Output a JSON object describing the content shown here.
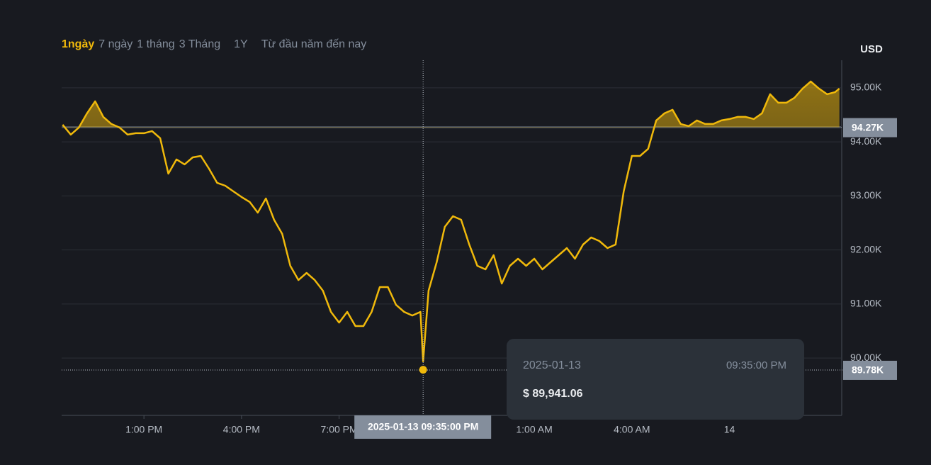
{
  "tabs": [
    "1ngày",
    "7 ngày",
    "1 tháng",
    "3 Tháng",
    "1Y",
    "Từ đầu năm đến nay"
  ],
  "chart_data": {
    "type": "line",
    "y_axis_label": "USD",
    "x": [
      -1.5,
      -1.25,
      -1,
      -0.75,
      -0.5,
      -0.25,
      0,
      0.25,
      0.5,
      0.75,
      1,
      1.25,
      1.5,
      1.75,
      2,
      2.25,
      2.5,
      2.75,
      3,
      3.25,
      3.5,
      3.75,
      4,
      4.25,
      4.5,
      4.75,
      5,
      5.25,
      5.5,
      5.75,
      6,
      6.25,
      6.5,
      6.75,
      7,
      7.25,
      7.5,
      7.75,
      8,
      8.25,
      8.5,
      8.75,
      9,
      9.25,
      9.5,
      9.583,
      9.75,
      10,
      10.25,
      10.5,
      10.75,
      11,
      11.25,
      11.5,
      11.75,
      12,
      12.25,
      12.5,
      12.75,
      13,
      13.25,
      13.5,
      13.75,
      14,
      14.25,
      14.5,
      14.75,
      15,
      15.25,
      15.5,
      15.75,
      16,
      16.25,
      16.5,
      16.75,
      17,
      17.25,
      17.5,
      17.75,
      18,
      18.25,
      18.5,
      18.75,
      19,
      19.25,
      19.5,
      19.75,
      20,
      20.25,
      20.5,
      20.75,
      21,
      21.25,
      21.5,
      21.75,
      22,
      22.25,
      22.38
    ],
    "series": [
      {
        "color": "#f0b90b",
        "values": [
          94318,
          94134,
          94265,
          94528,
          94751,
          94462,
          94331,
          94265,
          94134,
          94160,
          94160,
          94200,
          94068,
          93412,
          93675,
          93583,
          93714,
          93740,
          93504,
          93242,
          93189,
          93084,
          92980,
          92888,
          92691,
          92953,
          92560,
          92297,
          91707,
          91444,
          91576,
          91444,
          91248,
          90854,
          90657,
          90854,
          90592,
          90592,
          90854,
          91313,
          91313,
          90985,
          90854,
          90788,
          90854,
          89941.06,
          91248,
          91772,
          92428,
          92625,
          92560,
          92100,
          91707,
          91641,
          91904,
          91379,
          91707,
          91838,
          91707,
          91838,
          91641,
          91772,
          91904,
          92035,
          91838,
          92100,
          92232,
          92166,
          92035,
          92100,
          93084,
          93740,
          93740,
          93872,
          94396,
          94528,
          94593,
          94331,
          94292,
          94396,
          94331,
          94331,
          94396,
          94423,
          94462,
          94462,
          94423,
          94528,
          94882,
          94724,
          94724,
          94816,
          94987,
          95118,
          94987,
          94882,
          94921,
          94987
        ]
      }
    ],
    "xlim": [
      -1.53,
      22.43
    ],
    "xticks": [
      {
        "value": 1,
        "label": "1:00 PM"
      },
      {
        "value": 4,
        "label": "4:00 PM"
      },
      {
        "value": 7,
        "label": "7:00 PM"
      },
      {
        "value": 13,
        "label": "1:00 AM"
      },
      {
        "value": 16,
        "label": "4:00 AM"
      },
      {
        "value": 19,
        "label": "14"
      }
    ],
    "ylim": [
      88940,
      95510
    ],
    "yticks": [
      {
        "value": 90000,
        "label": "90.00K"
      },
      {
        "value": 91000,
        "label": "91.00K"
      },
      {
        "value": 92000,
        "label": "92.00K"
      },
      {
        "value": 93000,
        "label": "93.00K"
      },
      {
        "value": 94000,
        "label": "94.00K"
      },
      {
        "value": 95000,
        "label": "95.00K"
      }
    ],
    "grid": true,
    "baseline": {
      "value": 94270,
      "label": "94.27K"
    },
    "low_marker": {
      "value": 89780,
      "label": "89.78K"
    },
    "crosshair_label": "2025-01-13 09:35:00 PM",
    "tooltip": {
      "date": "2025-01-13",
      "time": "09:35:00 PM",
      "price": "$ 89,941.06"
    }
  }
}
